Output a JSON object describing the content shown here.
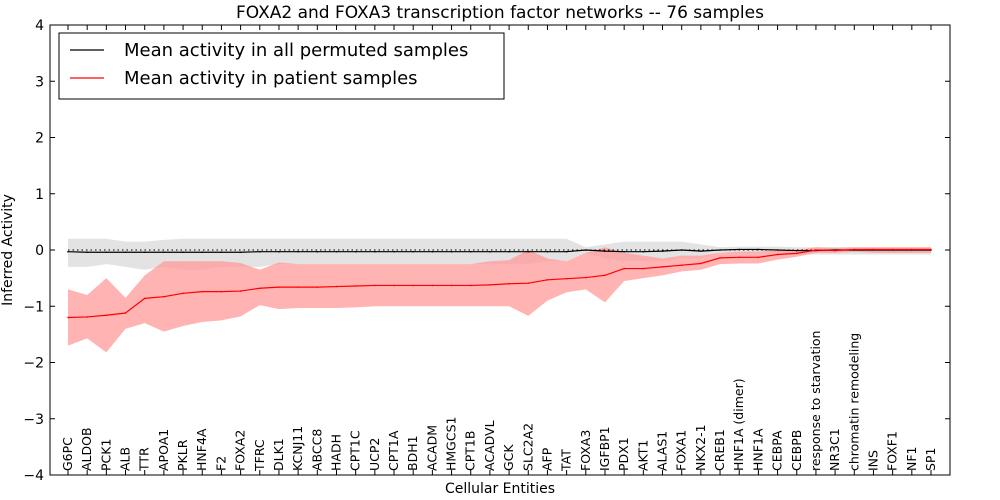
{
  "chart_data": {
    "type": "line",
    "title": "FOXA2 and FOXA3 transcription factor networks -- 76 samples",
    "xlabel": "Cellular Entities",
    "ylabel": "Inferred Activity",
    "ylim": [
      -4,
      4
    ],
    "yticks": [
      -4,
      -3,
      -2,
      -1,
      0,
      1,
      2,
      3,
      4
    ],
    "ytick_labels": [
      "−4",
      "−3",
      "−2",
      "−1",
      "0",
      "1",
      "2",
      "3",
      "4"
    ],
    "reference_line": 0,
    "legend_position": "top-left",
    "categories": [
      "G6PC",
      "ALDOB",
      "PCK1",
      "ALB",
      "TTR",
      "APOA1",
      "PKLR",
      "HNF4A",
      "F2",
      "FOXA2",
      "TFRC",
      "DLK1",
      "KCNJ11",
      "ABCC8",
      "HADH",
      "CPT1C",
      "UCP2",
      "CPT1A",
      "BDH1",
      "ACADM",
      "HMGCS1",
      "CPT1B",
      "ACADVL",
      "GCK",
      "SLC2A2",
      "AFP",
      "TAT",
      "FOXA3",
      "IGFBP1",
      "PDX1",
      "AKT1",
      "ALAS1",
      "FOXA1",
      "NKX2-1",
      "CREB1",
      "HNF1A (dimer)",
      "HNF1A",
      "CEBPA",
      "CEBPB",
      "response to starvation",
      "NR3C1",
      "chromatin remodeling",
      "INS",
      "FOXF1",
      "NF1",
      "SP1"
    ],
    "series": [
      {
        "name": "Mean activity in all permuted samples",
        "color": "#000000",
        "band_color": "#c8c8c8",
        "values": [
          -0.03,
          -0.04,
          -0.04,
          -0.04,
          -0.04,
          -0.04,
          -0.04,
          -0.04,
          -0.04,
          -0.04,
          -0.03,
          -0.03,
          -0.03,
          -0.03,
          -0.03,
          -0.03,
          -0.03,
          -0.03,
          -0.03,
          -0.03,
          -0.03,
          -0.03,
          -0.03,
          -0.03,
          -0.03,
          -0.03,
          -0.03,
          0.0,
          -0.02,
          -0.03,
          -0.03,
          -0.02,
          0.0,
          -0.02,
          0.0,
          0.01,
          0.01,
          0.0,
          -0.01,
          -0.01,
          0.0,
          0.0,
          0.0,
          0.0,
          0.0,
          0.0
        ],
        "upper": [
          0.2,
          0.2,
          0.2,
          0.15,
          0.15,
          0.18,
          0.2,
          0.2,
          0.2,
          0.2,
          0.2,
          0.2,
          0.2,
          0.2,
          0.2,
          0.2,
          0.2,
          0.2,
          0.2,
          0.2,
          0.2,
          0.2,
          0.2,
          0.2,
          0.2,
          0.2,
          0.2,
          0.05,
          0.1,
          0.15,
          0.15,
          0.15,
          0.15,
          0.1,
          0.05,
          0.06,
          0.06,
          0.06,
          0.05,
          0.05,
          0.05,
          0.05,
          0.05,
          0.05,
          0.05,
          0.05
        ],
        "lower": [
          -0.3,
          -0.3,
          -0.25,
          -0.3,
          -0.35,
          -0.3,
          -0.35,
          -0.35,
          -0.3,
          -0.3,
          -0.3,
          -0.25,
          -0.25,
          -0.25,
          -0.25,
          -0.25,
          -0.25,
          -0.25,
          -0.25,
          -0.25,
          -0.25,
          -0.25,
          -0.25,
          -0.25,
          -0.25,
          -0.2,
          -0.2,
          -0.05,
          -0.15,
          -0.2,
          -0.2,
          -0.2,
          -0.15,
          -0.15,
          -0.05,
          -0.05,
          -0.05,
          -0.05,
          -0.08,
          -0.08,
          -0.08,
          -0.08,
          -0.08,
          -0.08,
          -0.08,
          -0.08
        ]
      },
      {
        "name": "Mean activity in patient samples",
        "color": "#ff0000",
        "band_color": "#ff9999",
        "values": [
          -1.2,
          -1.19,
          -1.16,
          -1.12,
          -0.86,
          -0.83,
          -0.77,
          -0.74,
          -0.74,
          -0.73,
          -0.68,
          -0.66,
          -0.66,
          -0.66,
          -0.65,
          -0.64,
          -0.63,
          -0.63,
          -0.63,
          -0.63,
          -0.63,
          -0.63,
          -0.62,
          -0.6,
          -0.59,
          -0.53,
          -0.51,
          -0.49,
          -0.45,
          -0.33,
          -0.33,
          -0.3,
          -0.27,
          -0.24,
          -0.14,
          -0.13,
          -0.13,
          -0.08,
          -0.06,
          0.0,
          -0.01,
          0.01,
          0.01,
          0.01,
          0.01,
          0.01
        ],
        "upper": [
          -0.7,
          -0.8,
          -0.5,
          -0.85,
          -0.45,
          -0.2,
          -0.2,
          -0.2,
          -0.2,
          -0.23,
          -0.35,
          -0.22,
          -0.25,
          -0.25,
          -0.25,
          -0.25,
          -0.25,
          -0.25,
          -0.25,
          -0.25,
          -0.25,
          -0.25,
          -0.2,
          -0.18,
          0.0,
          -0.15,
          -0.2,
          -0.05,
          0.05,
          -0.05,
          -0.1,
          -0.15,
          -0.1,
          -0.1,
          -0.05,
          -0.03,
          -0.03,
          -0.01,
          0.0,
          0.05,
          0.04,
          0.05,
          0.05,
          0.05,
          0.05,
          0.05
        ],
        "lower": [
          -1.7,
          -1.57,
          -1.82,
          -1.4,
          -1.3,
          -1.45,
          -1.35,
          -1.28,
          -1.25,
          -1.18,
          -0.98,
          -1.05,
          -1.03,
          -1.03,
          -1.03,
          -1.02,
          -1.0,
          -1.0,
          -1.0,
          -1.0,
          -1.0,
          -1.0,
          -1.0,
          -1.0,
          -1.17,
          -0.9,
          -0.75,
          -0.7,
          -0.93,
          -0.55,
          -0.5,
          -0.45,
          -0.38,
          -0.35,
          -0.25,
          -0.24,
          -0.24,
          -0.17,
          -0.12,
          -0.05,
          -0.05,
          -0.03,
          -0.05,
          -0.05,
          -0.05,
          -0.05
        ]
      }
    ]
  }
}
